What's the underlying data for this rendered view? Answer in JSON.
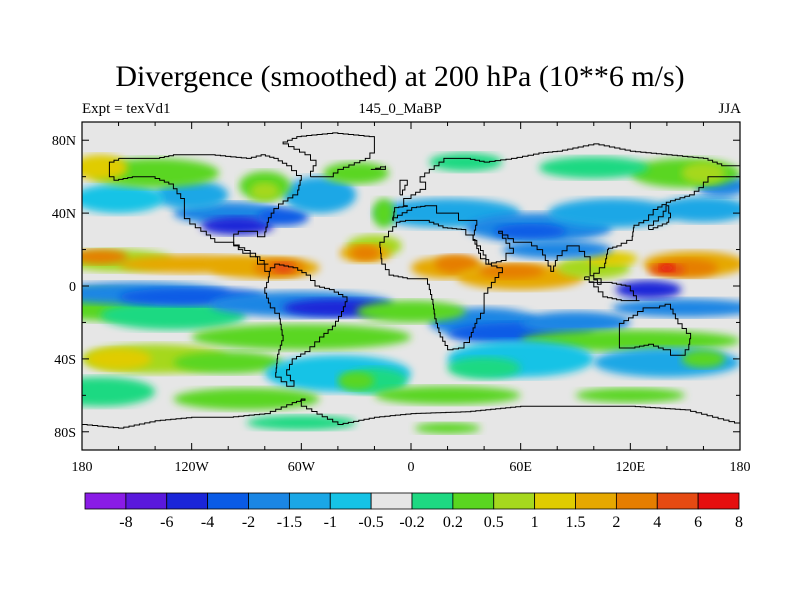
{
  "chart_data": {
    "type": "heatmap",
    "title": "Divergence (smoothed) at 200 hPa (10**6 m/s)",
    "subtitle_left": "Expt = texVd1",
    "subtitle_center": "145_0_MaBP",
    "subtitle_right": "JJA",
    "x_ticks": [
      "180",
      "120W",
      "60W",
      "0",
      "60E",
      "120E",
      "180"
    ],
    "y_ticks": [
      "80N",
      "40N",
      "0",
      "40S",
      "80S"
    ],
    "xlim": [
      -180,
      180
    ],
    "ylim": [
      -90,
      90
    ],
    "colorbar_labels": [
      "-8",
      "-6",
      "-4",
      "-2",
      "-1.5",
      "-1",
      "-0.5",
      "-0.2",
      "0.2",
      "0.5",
      "1",
      "1.5",
      "2",
      "4",
      "6",
      "8"
    ],
    "colors": [
      "#8a1be6",
      "#5a18dc",
      "#1a25d8",
      "#0a5be6",
      "#1a86e4",
      "#1aa7e6",
      "#16c3e6",
      "#e6e6e6",
      "#1ed982",
      "#5ad620",
      "#a6d81e",
      "#e0cc00",
      "#e6a800",
      "#e67e00",
      "#e64a12",
      "#e60e0e"
    ]
  }
}
